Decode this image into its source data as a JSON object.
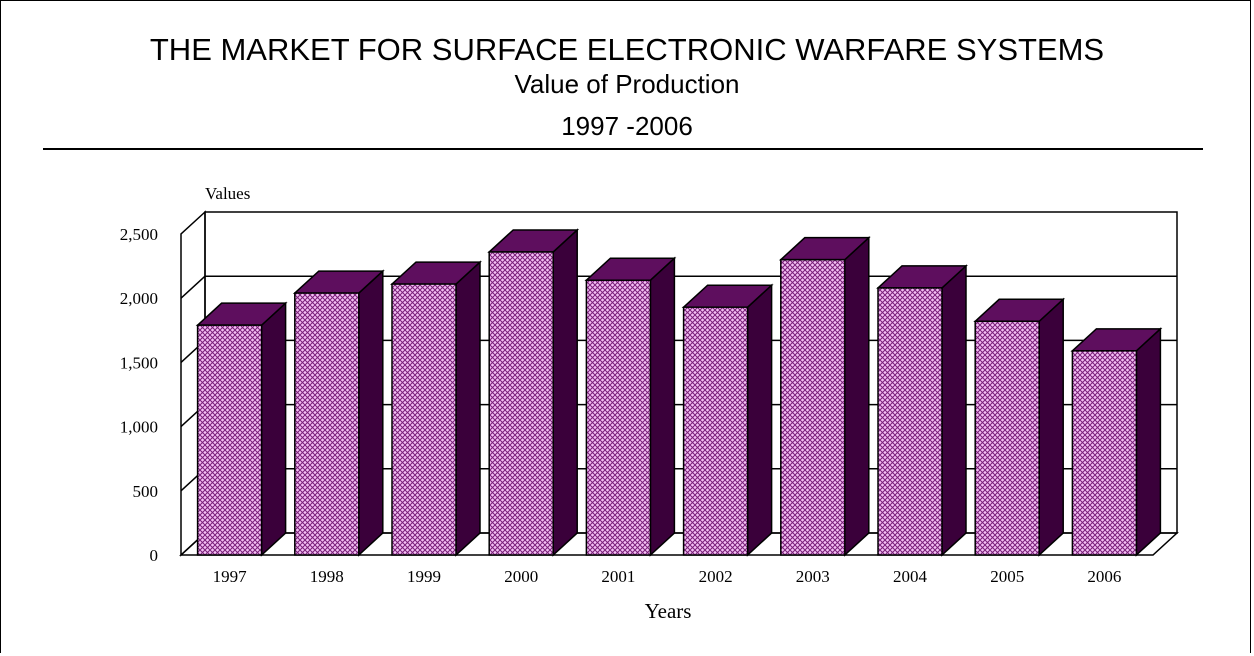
{
  "chart_data": {
    "type": "bar",
    "title": "THE MARKET FOR SURFACE ELECTRONIC WARFARE SYSTEMS",
    "subtitle_line1": "Value of Production",
    "subtitle_line2": "1997 -2006",
    "xlabel": "Years",
    "ylabel": "Values",
    "categories": [
      "1997",
      "1998",
      "1999",
      "2000",
      "2001",
      "2002",
      "2003",
      "2004",
      "2005",
      "2006"
    ],
    "values": [
      1790,
      2040,
      2110,
      2360,
      2140,
      1930,
      2300,
      2080,
      1820,
      1590
    ],
    "ylim": [
      0,
      2500
    ],
    "yticks": [
      0,
      500,
      1000,
      1500,
      2000,
      2500
    ],
    "ytick_labels": [
      "0",
      "500",
      "1,000",
      "1,500",
      "2,000",
      "2,500"
    ],
    "grid": true,
    "three_d": true,
    "colors": {
      "bar_front": "#f3c0f3",
      "bar_hatch": "#7a1f7a",
      "bar_side": "#3a003a",
      "bar_top": "#5e0e5e"
    }
  }
}
